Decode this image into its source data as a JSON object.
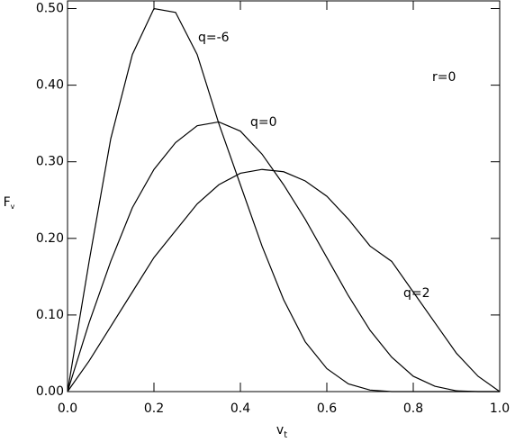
{
  "chart_data": {
    "type": "line",
    "xlabel": {
      "text": "v",
      "sub": "t"
    },
    "ylabel": {
      "text": "F",
      "sub": "v"
    },
    "x": [
      0,
      0.05,
      0.1,
      0.15,
      0.2,
      0.25,
      0.3,
      0.35,
      0.4,
      0.45,
      0.5,
      0.55,
      0.6,
      0.65,
      0.7,
      0.75,
      0.8,
      0.85,
      0.9,
      0.95,
      1.0
    ],
    "series": [
      {
        "name": "q=-6",
        "color": "#000000",
        "values": [
          0,
          0.17,
          0.33,
          0.44,
          0.5,
          0.495,
          0.44,
          0.35,
          0.27,
          0.19,
          0.12,
          0.065,
          0.03,
          0.01,
          0.002,
          0,
          0,
          0,
          0,
          0,
          0
        ]
      },
      {
        "name": "q=0",
        "color": "#000000",
        "values": [
          0,
          0.09,
          0.17,
          0.24,
          0.29,
          0.325,
          0.347,
          0.352,
          0.34,
          0.31,
          0.27,
          0.225,
          0.175,
          0.125,
          0.08,
          0.045,
          0.02,
          0.007,
          0.001,
          0,
          0
        ]
      },
      {
        "name": "q=2",
        "color": "#000000",
        "values": [
          0,
          0.04,
          0.085,
          0.13,
          0.175,
          0.21,
          0.245,
          0.27,
          0.285,
          0.29,
          0.287,
          0.275,
          0.255,
          0.225,
          0.19,
          0.17,
          0.13,
          0.09,
          0.05,
          0.02,
          0
        ]
      }
    ],
    "annotation": "r=0",
    "xlim": [
      0,
      1.0
    ],
    "ylim": [
      0,
      0.51
    ],
    "xticks": [
      {
        "value": 0,
        "label": "0.0"
      },
      0.2,
      0.4,
      0.6,
      0.8,
      {
        "value": 1.0,
        "label": "1.0"
      }
    ],
    "yticks": [
      {
        "value": 0,
        "label": "0.00"
      },
      {
        "value": 0.1,
        "label": "0.10"
      },
      {
        "value": 0.2,
        "label": "0.20"
      },
      {
        "value": 0.3,
        "label": "0.30"
      },
      {
        "value": 0.4,
        "label": "0.40"
      },
      {
        "value": 0.5,
        "label": "0.50"
      }
    ],
    "grid": false
  }
}
